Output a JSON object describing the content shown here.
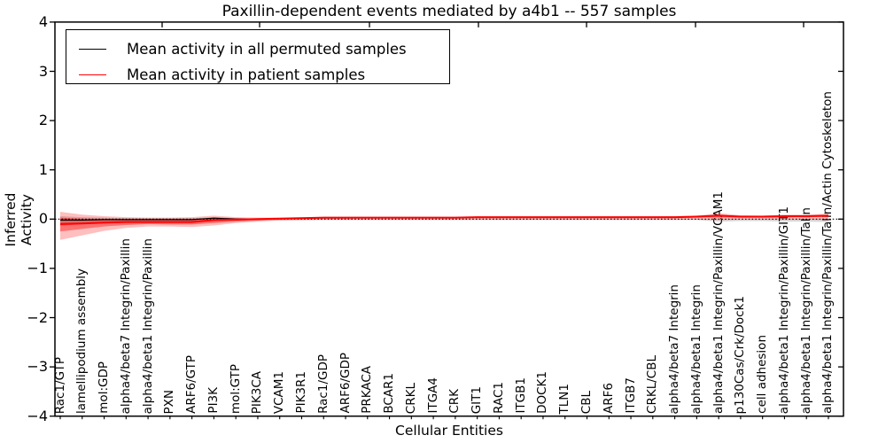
{
  "title": "Paxillin-dependent events mediated by a4b1 -- 557 samples",
  "legend": {
    "items": [
      {
        "label": "Mean activity in all permuted samples",
        "color": "#000000"
      },
      {
        "label": "Mean activity in patient samples",
        "color": "#ff0000"
      }
    ]
  },
  "axes": {
    "ylabel": "Inferred Activity",
    "xlabel": "Cellular Entities",
    "ytick_labels": [
      "4",
      "3",
      "2",
      "1",
      "0",
      "−1",
      "−2",
      "−3",
      "−4"
    ],
    "ytick_values": [
      4,
      3,
      2,
      1,
      0,
      -1,
      -2,
      -3,
      -4
    ]
  },
  "chart_data": {
    "type": "line",
    "title": "Paxillin-dependent events mediated by a4b1 -- 557 samples",
    "xlabel": "Cellular Entities",
    "ylabel": "Inferred Activity",
    "ylim": [
      -4,
      4
    ],
    "grid": false,
    "legend_position": "upper left",
    "zero_line_style": "dotted",
    "categories": [
      "Rac1/GTP",
      "lamellipodium assembly",
      "mol:GDP",
      "alpha4/beta7 Integrin/Paxillin",
      "alpha4/beta1 Integrin/Paxillin",
      "PXN",
      "ARF6/GTP",
      "PI3K",
      "mol:GTP",
      "PIK3CA",
      "VCAM1",
      "PIK3R1",
      "Rac1/GDP",
      "ARF6/GDP",
      "PRKACA",
      "BCAR1",
      "CRKL",
      "ITGA4",
      "CRK",
      "GIT1",
      "RAC1",
      "ITGB1",
      "DOCK1",
      "TLN1",
      "CBL",
      "ARF6",
      "ITGB7",
      "CRKL/CBL",
      "alpha4/beta7 Integrin",
      "alpha4/beta1 Integrin",
      "alpha4/beta1 Integrin/Paxillin/VCAM1",
      "p130Cas/Crk/Dock1",
      "cell adhesion",
      "alpha4/beta1 Integrin/Paxillin/GIT1",
      "alpha4/beta1 Integrin/Paxillin/Talin",
      "alpha4/beta1 Integrin/Paxillin/Talin/Actin Cytoskeleton"
    ],
    "series": [
      {
        "name": "Mean activity in all permuted samples",
        "color": "#000000",
        "width": 1.2,
        "values": [
          -0.02,
          -0.02,
          -0.01,
          -0.01,
          -0.01,
          -0.01,
          -0.01,
          0.02,
          0.0,
          0.0,
          0.01,
          0.02,
          0.03,
          0.03,
          0.03,
          0.03,
          0.03,
          0.03,
          0.03,
          0.04,
          0.04,
          0.04,
          0.04,
          0.04,
          0.04,
          0.04,
          0.04,
          0.04,
          0.04,
          0.05,
          0.07,
          0.05,
          0.05,
          0.06,
          0.06,
          0.07
        ]
      },
      {
        "name": "Mean activity in patient samples",
        "color": "#ff0000",
        "width": 2,
        "values": [
          -0.1,
          -0.09,
          -0.07,
          -0.06,
          -0.06,
          -0.06,
          -0.06,
          -0.02,
          -0.01,
          0.0,
          0.01,
          0.02,
          0.03,
          0.03,
          0.03,
          0.03,
          0.03,
          0.03,
          0.03,
          0.04,
          0.04,
          0.04,
          0.04,
          0.04,
          0.04,
          0.04,
          0.04,
          0.04,
          0.04,
          0.05,
          0.07,
          0.05,
          0.05,
          0.06,
          0.06,
          0.07
        ]
      }
    ],
    "bands": [
      {
        "name": "permuted-spread",
        "color": "rgba(0,0,0,0.16)",
        "upper": [
          0.06,
          0.04,
          0.03,
          0.02,
          0.02,
          0.02,
          0.02,
          0.04,
          0.02,
          0.01,
          0.01,
          0.01,
          0.01,
          0.01,
          0.01,
          0.01,
          0.01,
          0.01,
          0.01,
          0.01,
          0.01,
          0.01,
          0.01,
          0.01,
          0.01,
          0.01,
          0.01,
          0.01,
          0.01,
          0.01,
          0.01,
          0.01,
          0.01,
          0.01,
          0.01,
          0.01
        ],
        "lower": [
          -0.14,
          -0.1,
          -0.07,
          -0.05,
          -0.04,
          -0.04,
          -0.05,
          -0.03,
          -0.03,
          -0.02,
          -0.02,
          -0.02,
          -0.02,
          -0.02,
          -0.02,
          -0.02,
          -0.02,
          -0.02,
          -0.02,
          -0.02,
          -0.02,
          -0.02,
          -0.02,
          -0.02,
          -0.02,
          -0.02,
          -0.02,
          -0.02,
          -0.02,
          -0.02,
          -0.05,
          -0.04,
          -0.04,
          -0.05,
          -0.05,
          -0.06
        ]
      },
      {
        "name": "patient-spread-outer",
        "color": "rgba(255,0,0,0.25)",
        "upper": [
          0.15,
          0.09,
          0.06,
          0.04,
          0.03,
          0.03,
          0.04,
          0.07,
          0.04,
          0.03,
          0.03,
          0.04,
          0.04,
          0.04,
          0.04,
          0.04,
          0.04,
          0.04,
          0.04,
          0.04,
          0.05,
          0.05,
          0.05,
          0.05,
          0.05,
          0.05,
          0.05,
          0.05,
          0.06,
          0.07,
          0.12,
          0.08,
          0.07,
          0.09,
          0.09,
          0.11
        ],
        "lower": [
          -0.42,
          -0.33,
          -0.24,
          -0.18,
          -0.15,
          -0.15,
          -0.16,
          -0.13,
          -0.08,
          -0.05,
          -0.03,
          -0.02,
          -0.01,
          -0.01,
          -0.01,
          -0.01,
          -0.01,
          -0.01,
          -0.01,
          -0.01,
          -0.01,
          -0.01,
          -0.01,
          -0.01,
          -0.01,
          -0.01,
          -0.01,
          -0.01,
          -0.01,
          -0.01,
          -0.02,
          -0.01,
          -0.01,
          -0.01,
          -0.01,
          -0.02
        ]
      },
      {
        "name": "patient-spread-inner",
        "color": "rgba(255,0,0,0.4)",
        "upper": [
          0.03,
          0.01,
          0.0,
          -0.01,
          -0.01,
          -0.01,
          -0.01,
          0.03,
          0.02,
          0.01,
          0.02,
          0.03,
          0.03,
          0.03,
          0.04,
          0.04,
          0.04,
          0.04,
          0.04,
          0.04,
          0.04,
          0.04,
          0.04,
          0.04,
          0.04,
          0.04,
          0.04,
          0.04,
          0.05,
          0.05,
          0.09,
          0.06,
          0.06,
          0.07,
          0.07,
          0.09
        ],
        "lower": [
          -0.25,
          -0.2,
          -0.15,
          -0.12,
          -0.1,
          -0.11,
          -0.11,
          -0.08,
          -0.05,
          -0.03,
          -0.01,
          0.0,
          0.01,
          0.01,
          0.02,
          0.02,
          0.02,
          0.02,
          0.02,
          0.02,
          0.02,
          0.02,
          0.02,
          0.02,
          0.02,
          0.02,
          0.02,
          0.02,
          0.02,
          0.03,
          0.03,
          0.03,
          0.03,
          0.03,
          0.04,
          0.04
        ]
      }
    ]
  }
}
